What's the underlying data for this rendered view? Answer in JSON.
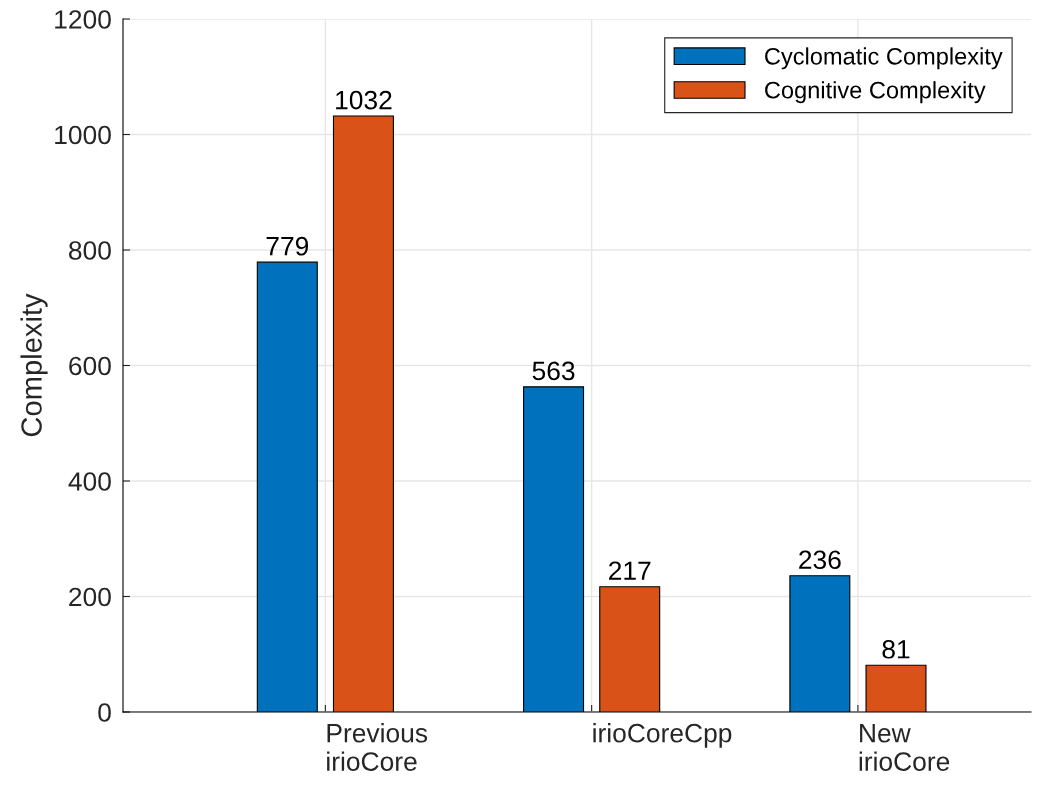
{
  "chart_data": {
    "type": "bar",
    "ylabel": "Complexity",
    "categories": [
      "Previous\nirioCore",
      "irioCoreCpp",
      "New\nirioCore"
    ],
    "series": [
      {
        "name": "Cyclomatic Complexity",
        "color": "#0072bd",
        "values": [
          779,
          563,
          236
        ]
      },
      {
        "name": "Cognitive Complexity",
        "color": "#d95319",
        "values": [
          1032,
          217,
          81
        ]
      }
    ],
    "ylim": [
      0,
      1200
    ],
    "yticks": [
      0,
      200,
      400,
      600,
      800,
      1000,
      1200
    ],
    "grid": true,
    "legend": "top right",
    "data_labels": true
  }
}
